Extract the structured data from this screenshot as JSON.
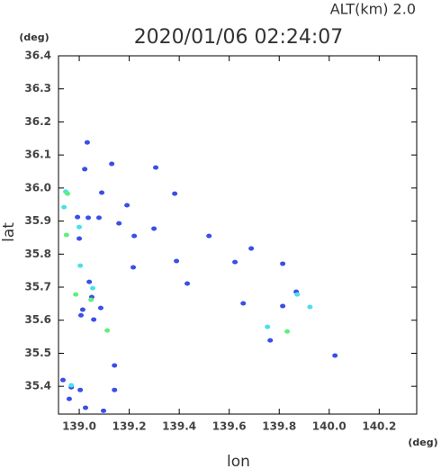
{
  "chart_data": {
    "type": "scatter",
    "title": "2020/01/06 02:24:07",
    "subtitle": "ALT(km) 2.0",
    "x_label": "lon",
    "y_label": "lat",
    "x_unit": "(deg)",
    "y_unit": "(deg)",
    "xlim": [
      138.917,
      140.35
    ],
    "ylim": [
      35.316,
      36.4
    ],
    "xticks": [
      {
        "value": 139.0,
        "label": "139.0"
      },
      139.2,
      139.4,
      139.6,
      139.8,
      {
        "value": 140.0,
        "label": "140.0"
      },
      140.2
    ],
    "yticks": [
      {
        "value": 36.4,
        "label": "36.4"
      },
      36.3,
      36.2,
      36.1,
      {
        "value": 36.0,
        "label": "36.0"
      },
      35.9,
      35.8,
      35.7,
      35.6,
      35.5,
      35.4
    ],
    "grid": false,
    "series": [
      {
        "color": "#3a4ee8",
        "x": [
          139.032,
          139.022,
          139.13,
          139.306,
          139.382,
          139.09,
          139.191,
          138.993,
          139.036,
          139.079,
          139.0,
          139.159,
          139.299,
          139.519,
          139.688,
          139.22,
          139.389,
          139.216,
          139.623,
          139.814,
          139.432,
          139.04,
          139.05,
          139.086,
          139.014,
          139.058,
          139.007,
          139.656,
          139.868,
          139.814,
          139.764,
          140.023,
          139.141,
          138.935,
          138.968,
          139.004,
          139.141,
          138.96,
          139.025,
          139.097
        ],
        "values": [
          36.138,
          36.057,
          36.073,
          36.062,
          35.983,
          35.986,
          35.948,
          35.912,
          35.91,
          35.91,
          35.847,
          35.893,
          35.877,
          35.855,
          35.817,
          35.855,
          35.779,
          35.76,
          35.776,
          35.771,
          35.711,
          35.716,
          35.67,
          35.637,
          35.632,
          35.602,
          35.615,
          35.651,
          35.686,
          35.643,
          35.539,
          35.493,
          35.463,
          35.419,
          35.397,
          35.389,
          35.389,
          35.362,
          35.335,
          35.326
        ]
      },
      {
        "color": "#4ae0ec",
        "x": [
          138.946,
          138.939,
          139.0,
          139.004,
          139.054,
          138.968,
          139.872,
          139.753,
          139.923
        ],
        "values": [
          35.989,
          35.942,
          35.882,
          35.765,
          35.697,
          35.403,
          35.678,
          35.58,
          35.64
        ]
      },
      {
        "color": "#5ef07a",
        "x": [
          138.953,
          138.949,
          138.986,
          139.112,
          139.832,
          139.047
        ],
        "values": [
          35.983,
          35.858,
          35.678,
          35.569,
          35.566,
          35.662
        ]
      }
    ]
  }
}
